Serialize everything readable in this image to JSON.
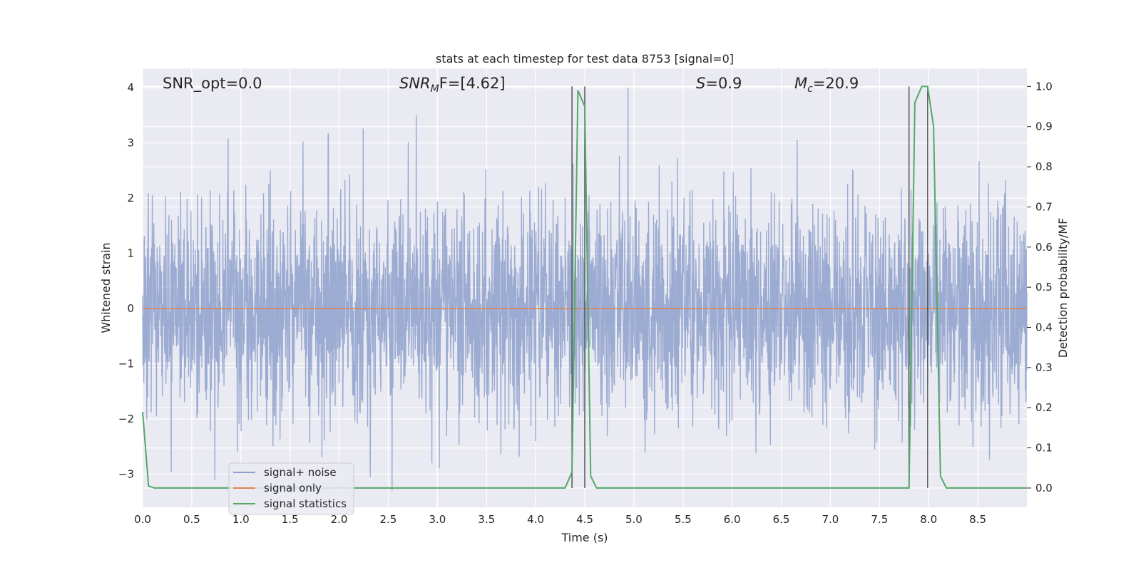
{
  "chart_data": {
    "type": "line",
    "title": "stats at each timestep for test data 8753 [signal=0]",
    "xlabel": "Time (s)",
    "ylabel": "Whitened strain",
    "ylabel_right": "Detection probability/MF",
    "xlim": [
      0,
      9.0
    ],
    "ylim": [
      -3.6,
      4.35
    ],
    "ylim_right": [
      -0.048,
      1.045
    ],
    "x_ticks": [
      "0.0",
      "0.5",
      "1.0",
      "1.5",
      "2.0",
      "2.5",
      "3.0",
      "3.5",
      "4.0",
      "4.5",
      "5.0",
      "5.5",
      "6.0",
      "6.5",
      "7.0",
      "7.5",
      "8.0",
      "8.5"
    ],
    "y_ticks": [
      "4",
      "3",
      "2",
      "1",
      "0",
      "−1",
      "−2",
      "−3"
    ],
    "y_tick_values": [
      4,
      3,
      2,
      1,
      0,
      -1,
      -2,
      -3
    ],
    "y_ticks_right": [
      "1.0",
      "0.9",
      "0.8",
      "0.7",
      "0.6",
      "0.5",
      "0.4",
      "0.3",
      "0.2",
      "0.1",
      "0.0"
    ],
    "y_tick_values_right": [
      1.0,
      0.9,
      0.8,
      0.7,
      0.6,
      0.5,
      0.4,
      0.3,
      0.2,
      0.1,
      0.0
    ],
    "grid": true,
    "legend_position": "lower-left",
    "annotations": {
      "snr_opt": "SNR_opt=0.0",
      "snr_mf_main": "SNR",
      "snr_mf_sub": "M",
      "snr_mf_tail": "F=[4.62]",
      "s_main": "S",
      "s_tail": "=0.9",
      "mc_main": "M",
      "mc_sub": "c",
      "mc_tail": "=20.9"
    },
    "series": [
      {
        "name": "signal+ noise",
        "color": "#8da0cb",
        "description_values": "whitened noise strain, approx. gaussian, std ~1, range ~[-3.3, 4.0]"
      },
      {
        "name": "signal only",
        "color": "#dd8452",
        "x": [
          0,
          9.0
        ],
        "y": [
          0,
          0
        ]
      },
      {
        "name": "signal statistics",
        "color": "#55a868",
        "axis": "right",
        "x": [
          0.0,
          0.06,
          0.12,
          4.3,
          4.37,
          4.43,
          4.5,
          4.56,
          4.62,
          7.8,
          7.86,
          7.93,
          7.99,
          8.05,
          8.12,
          8.18,
          9.0
        ],
        "y": [
          0.19,
          0.005,
          0.0,
          0.0,
          0.04,
          0.99,
          0.95,
          0.03,
          0.0,
          0.0,
          0.96,
          1.0,
          1.0,
          0.9,
          0.03,
          0.0,
          0.0
        ]
      }
    ],
    "vertical_lines_x": [
      4.37,
      4.5,
      7.8,
      7.99
    ],
    "vertical_line_color": "#555555"
  }
}
